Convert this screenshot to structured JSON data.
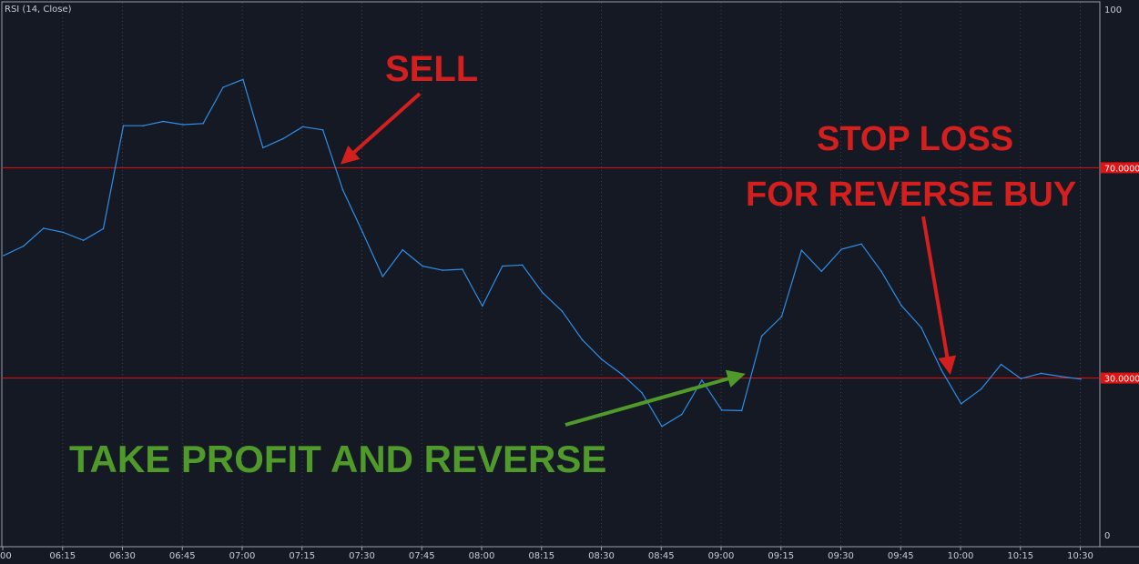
{
  "indicator_label": "RSI (14, Close)",
  "colors": {
    "background": "#141923",
    "line": "#2f8ee8",
    "levels": "#e01313",
    "sell": "#d41f1f",
    "take_profit": "#4f9a2a",
    "grid": "#3a3f4d"
  },
  "chart_data": {
    "type": "line",
    "title": "RSI (14, Close)",
    "xlabel": "",
    "ylabel": "",
    "x_ticks": [
      "00",
      "06:15",
      "06:30",
      "06:45",
      "07:00",
      "07:15",
      "07:30",
      "07:45",
      "08:00",
      "08:15",
      "08:30",
      "08:45",
      "09:00",
      "09:15",
      "09:30",
      "09:45",
      "10:00",
      "10:15",
      "10:30"
    ],
    "y_ticks": [
      "100",
      "0"
    ],
    "ylim": [
      0,
      100
    ],
    "levels": [
      {
        "value": 70,
        "label": "70.0000"
      },
      {
        "value": 30,
        "label": "30.0000"
      }
    ],
    "grid": "vertical dotted",
    "x": [
      "06:00",
      "06:05",
      "06:10",
      "06:15",
      "06:20",
      "06:25",
      "06:30",
      "06:35",
      "06:40",
      "06:45",
      "06:50",
      "06:55",
      "07:00",
      "07:05",
      "07:10",
      "07:15",
      "07:20",
      "07:25",
      "07:30",
      "07:35",
      "07:40",
      "07:45",
      "07:50",
      "07:55",
      "08:00",
      "08:05",
      "08:10",
      "08:15",
      "08:20",
      "08:25",
      "08:30",
      "08:35",
      "08:40",
      "08:45",
      "08:50",
      "08:55",
      "09:00",
      "09:05",
      "09:10",
      "09:15",
      "09:20",
      "09:25",
      "09:30",
      "09:35",
      "09:40",
      "09:45",
      "09:50",
      "09:55",
      "10:00",
      "10:05",
      "10:10",
      "10:15",
      "10:20",
      "10:25",
      "10:30"
    ],
    "values": [
      53.3,
      55.1,
      58.5,
      57.7,
      56.2,
      58.4,
      78.0,
      78.0,
      78.8,
      78.2,
      78.4,
      85.3,
      86.8,
      73.8,
      75.5,
      77.8,
      77.2,
      65.8,
      57.7,
      49.3,
      54.4,
      51.3,
      50.5,
      50.7,
      43.7,
      51.3,
      51.5,
      46.3,
      42.7,
      37.3,
      33.5,
      30.7,
      27.2,
      20.8,
      23.1,
      29.6,
      23.9,
      23.8,
      38.0,
      41.7,
      54.3,
      50.3,
      54.5,
      55.5,
      50.3,
      43.8,
      39.6,
      31.6,
      25.1,
      27.9,
      32.6,
      29.9,
      30.9,
      30.3,
      29.8
    ]
  },
  "annotations": {
    "sell": "SELL",
    "stop_line1": "STOP LOSS",
    "stop_line2": "FOR REVERSE BUY",
    "take_profit": "TAKE PROFIT AND REVERSE"
  }
}
